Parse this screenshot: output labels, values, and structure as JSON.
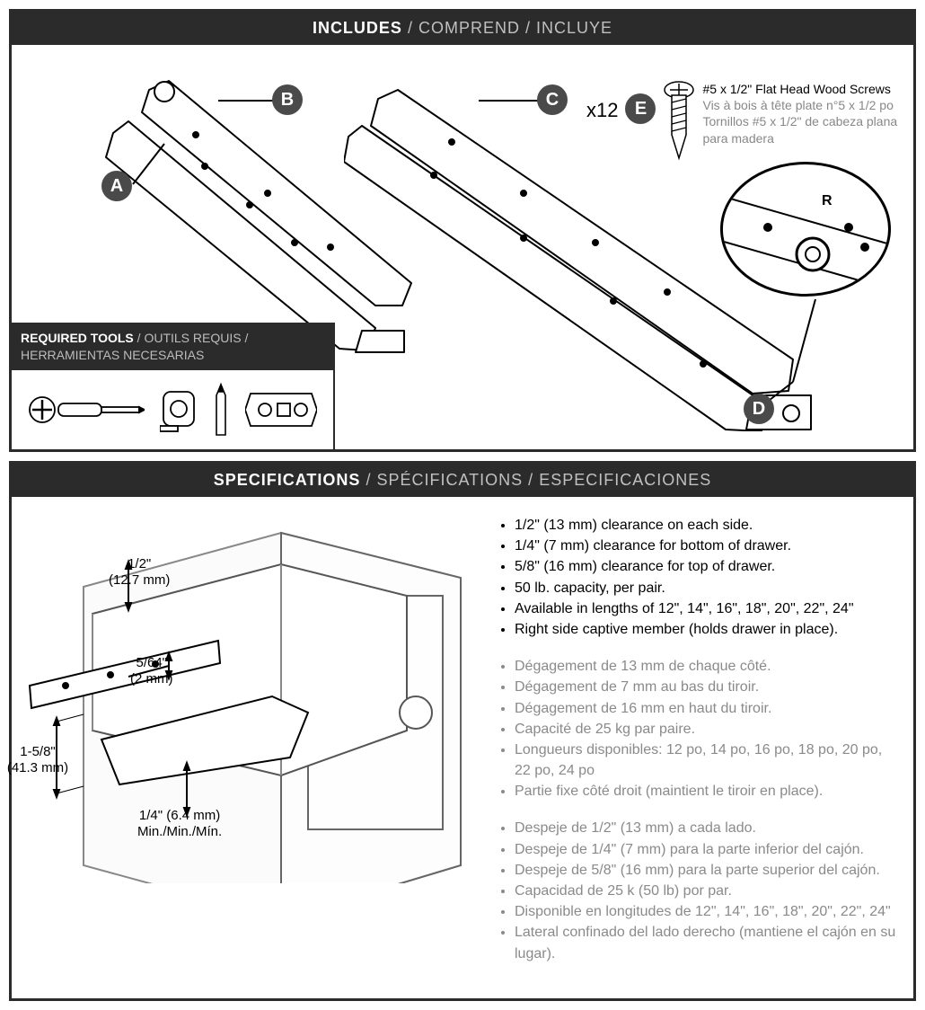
{
  "colors": {
    "panel_border": "#2b2b2b",
    "header_bg": "#2b2b2b",
    "header_text": "#ffffff",
    "header_secondary": "#c0c0c0",
    "bubble_bg": "#4a4a4a",
    "alt_text": "#8a8a8a",
    "line": "#000000"
  },
  "includes": {
    "title_en": "INCLUDES",
    "title_fr": "COMPREND",
    "title_es": "INCLUYE",
    "labels": {
      "a": "A",
      "b": "B",
      "c": "C",
      "d": "D",
      "e": "E"
    },
    "screw": {
      "qty": "x12",
      "en": "#5 x 1/2\" Flat Head Wood Screws",
      "fr": "Vis à bois à tête plate n°5 x 1/2 po",
      "es": "Tornillos #5 x 1/2\" de cabeza plana para madera"
    },
    "detail_letter": "R",
    "tools": {
      "title_en": "REQUIRED TOOLS",
      "title_fr": "OUTILS REQUIS",
      "title_es": "HERRAMIENTAS NECESARIAS"
    }
  },
  "specs": {
    "title_en": "SPECIFICATIONS",
    "title_fr": "SPÉCIFICATIONS",
    "title_es": "ESPECIFICACIONES",
    "dimensions": {
      "side_clearance": {
        "line1": "1/2\"",
        "line2": "(12.7 mm)"
      },
      "gap": {
        "line1": "5/64\"",
        "line2": "(2 mm)"
      },
      "height": {
        "line1": "1-5/8\"",
        "line2": "(41.3 mm)"
      },
      "bottom": {
        "line1": "1/4\" (6.4 mm)",
        "line2": "Min./Min./Mín."
      }
    },
    "bullets_en": [
      "1/2\" (13 mm) clearance on each side.",
      "1/4\" (7 mm) clearance for bottom of drawer.",
      "5/8\" (16 mm) clearance for top of drawer.",
      "50 lb. capacity, per pair.",
      "Available in lengths of 12\", 14\", 16\", 18\", 20\", 22\", 24\"",
      "Right side captive member (holds drawer in place)."
    ],
    "bullets_fr": [
      "Dégagement de 13 mm de chaque côté.",
      "Dégagement de 7 mm au bas du tiroir.",
      "Dégagement de 16 mm en haut du tiroir.",
      "Capacité de 25 kg par paire.",
      "Longueurs disponibles: 12 po, 14 po, 16 po, 18 po, 20 po, 22 po, 24 po",
      "Partie fixe côté droit (maintient le tiroir en place)."
    ],
    "bullets_es": [
      "Despeje de 1/2\" (13 mm) a cada lado.",
      "Despeje de 1/4\" (7 mm) para la parte inferior del cajón.",
      "Despeje de 5/8\" (16 mm) para la parte superior del cajón.",
      "Capacidad de 25 k (50 lb) por par.",
      "Disponible en longitudes de 12\", 14\", 16\", 18\", 20\", 22\", 24\"",
      "Lateral confinado del lado derecho (mantiene el cajón en su lugar)."
    ]
  }
}
